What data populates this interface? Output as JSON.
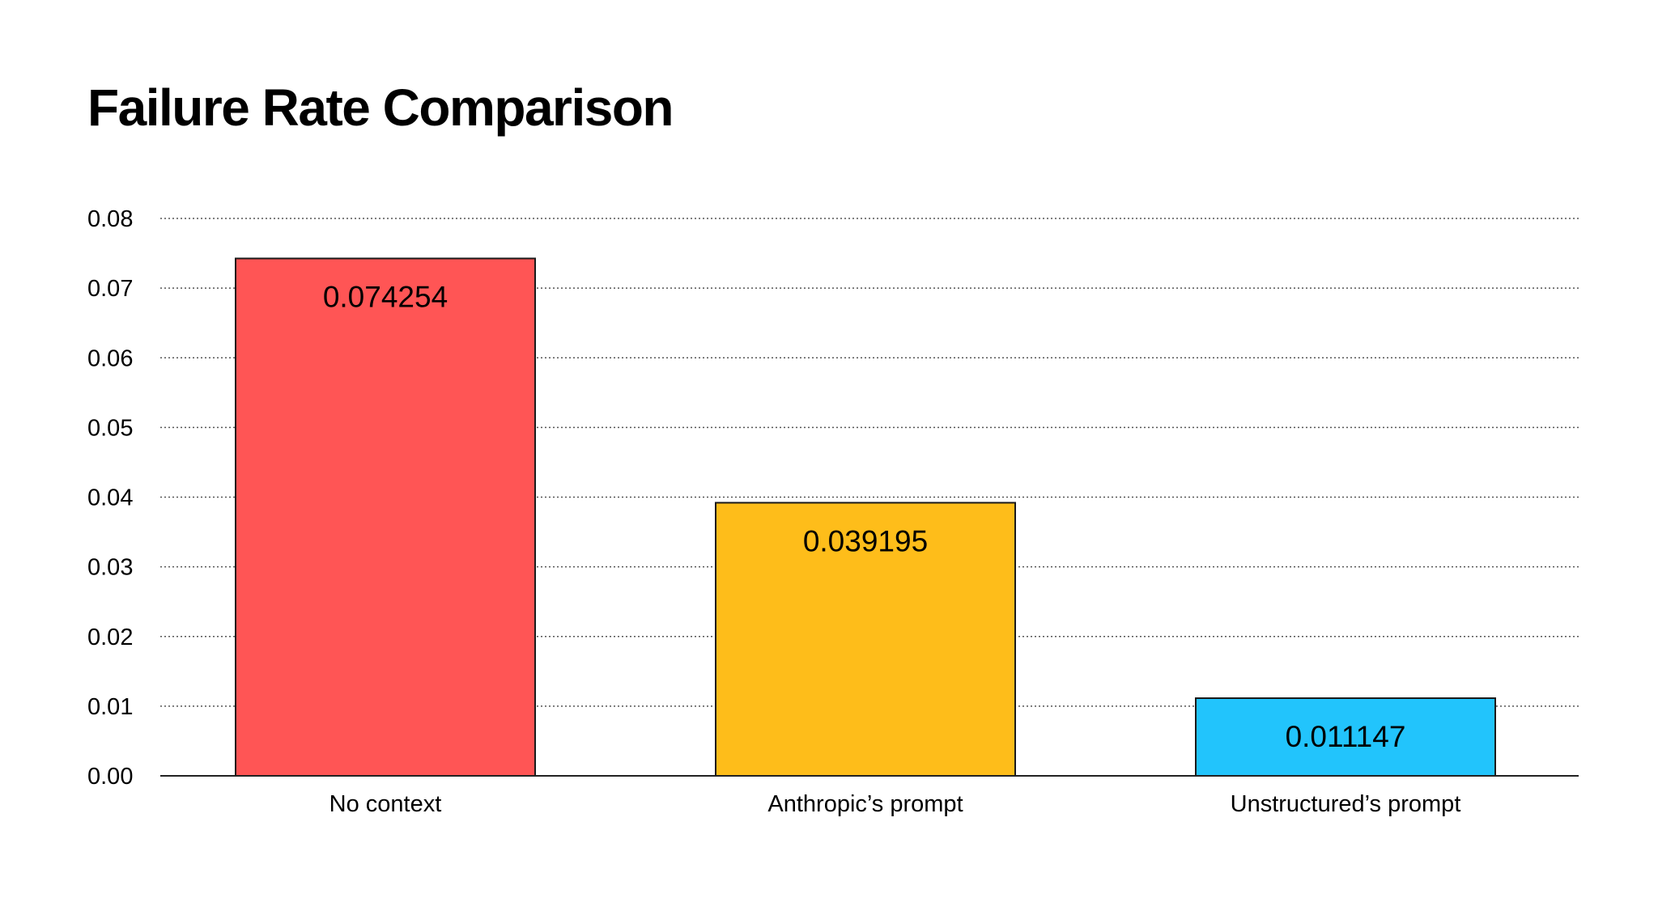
{
  "chart_data": {
    "type": "bar",
    "title": "Failure Rate Comparison",
    "xlabel": "",
    "ylabel": "",
    "categories": [
      "No context",
      "Anthropic’s prompt",
      "Unstructured’s prompt"
    ],
    "values": [
      0.074254,
      0.039195,
      0.011147
    ],
    "data_labels": [
      "0.074254",
      "0.039195",
      "0.011147"
    ],
    "colors": [
      "#FF5555",
      "#FEBD1A",
      "#22C4FC"
    ],
    "ylim": [
      0,
      0.08
    ],
    "yticks": [
      0.0,
      0.01,
      0.02,
      0.03,
      0.04,
      0.05,
      0.06,
      0.07,
      0.08
    ],
    "ytick_labels": [
      "0.00",
      "0.01",
      "0.02",
      "0.03",
      "0.04",
      "0.05",
      "0.06",
      "0.07",
      "0.08"
    ],
    "grid": true,
    "legend": "none"
  }
}
